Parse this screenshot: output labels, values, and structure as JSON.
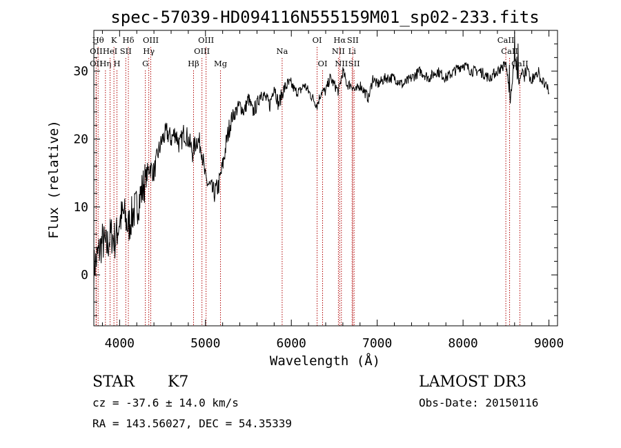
{
  "chart_data": {
    "type": "line",
    "title": "spec-57039-HD094116N555159M01_sp02-233.fits",
    "xlabel": "Wavelength (Å)",
    "ylabel": "Flux (relative)",
    "xlim": [
      3700,
      9100
    ],
    "ylim": [
      -7.5,
      36
    ],
    "x_ticks": [
      4000,
      5000,
      6000,
      7000,
      8000,
      9000
    ],
    "y_ticks": [
      0,
      10,
      20,
      30
    ],
    "grid": false,
    "series": [
      {
        "x": [
          3700,
          3750,
          3800,
          3850,
          3900,
          3950,
          4000,
          4050,
          4100,
          4150,
          4200,
          4250,
          4300,
          4350,
          4400,
          4450,
          4500,
          4550,
          4600,
          4650,
          4700,
          4750,
          4800,
          4850,
          4900,
          4950,
          5000,
          5050,
          5100,
          5150,
          5200,
          5250,
          5300,
          5350,
          5400,
          5450,
          5500,
          5550,
          5600,
          5650,
          5700,
          5750,
          5800,
          5850,
          5900,
          5950,
          6000,
          6050,
          6100,
          6150,
          6200,
          6250,
          6300,
          6350,
          6400,
          6450,
          6500,
          6550,
          6600,
          6650,
          6700,
          6750,
          6800,
          6850,
          6900,
          6950,
          7000,
          7100,
          7200,
          7300,
          7400,
          7500,
          7600,
          7700,
          7800,
          7900,
          8000,
          8100,
          8200,
          8300,
          8400,
          8500,
          8550,
          8600,
          8650,
          8700,
          8750,
          8800,
          8850,
          8900,
          8950,
          9000
        ],
        "values": [
          1,
          3,
          5,
          4,
          6,
          5,
          8,
          9,
          7,
          9,
          10,
          12,
          14,
          16,
          15,
          18,
          20,
          21,
          20,
          21,
          19,
          21,
          20,
          18,
          20,
          19,
          14,
          13,
          12,
          13,
          16,
          20,
          23,
          24,
          25,
          24,
          26,
          24,
          25,
          27,
          26,
          25,
          28,
          25,
          27,
          28,
          28,
          27,
          27,
          28,
          27,
          26,
          25,
          27,
          27,
          29,
          28,
          27,
          30,
          28,
          28,
          27,
          28,
          27,
          26,
          29,
          28,
          29,
          29,
          28,
          29,
          30,
          29,
          30,
          29,
          30,
          31,
          30,
          30,
          29,
          30,
          31,
          26,
          32,
          28,
          30,
          30,
          28,
          30,
          29,
          28,
          27
        ]
      }
    ],
    "annotations": [
      {
        "x": 3750,
        "row": 1,
        "label": "Hθ"
      },
      {
        "x": 3727,
        "row": 2,
        "label": "OII"
      },
      {
        "x": 3727,
        "row": 3,
        "label": "OII"
      },
      {
        "x": 3835,
        "row": 3,
        "label": "Hη"
      },
      {
        "x": 3889,
        "row": 2,
        "label": "HeI"
      },
      {
        "x": 3934,
        "row": 1,
        "label": "K"
      },
      {
        "x": 3969,
        "row": 3,
        "label": "H"
      },
      {
        "x": 4072,
        "row": 2,
        "label": "SII"
      },
      {
        "x": 4102,
        "row": 1,
        "label": "Hδ"
      },
      {
        "x": 4300,
        "row": 3,
        "label": "G"
      },
      {
        "x": 4340,
        "row": 2,
        "label": "Hγ"
      },
      {
        "x": 4363,
        "row": 1,
        "label": "OIII"
      },
      {
        "x": 4861,
        "row": 3,
        "label": "Hβ"
      },
      {
        "x": 4959,
        "row": 2,
        "label": "OIII"
      },
      {
        "x": 5007,
        "row": 1,
        "label": "OIII"
      },
      {
        "x": 5175,
        "row": 3,
        "label": "Mg"
      },
      {
        "x": 5893,
        "row": 2,
        "label": "Na"
      },
      {
        "x": 6300,
        "row": 1,
        "label": "OI"
      },
      {
        "x": 6364,
        "row": 3,
        "label": "OI"
      },
      {
        "x": 6548,
        "row": 2,
        "label": "NII"
      },
      {
        "x": 6563,
        "row": 1,
        "label": "Hα"
      },
      {
        "x": 6583,
        "row": 3,
        "label": "NII"
      },
      {
        "x": 6708,
        "row": 2,
        "label": "Li"
      },
      {
        "x": 6716,
        "row": 1,
        "label": "SII"
      },
      {
        "x": 6731,
        "row": 3,
        "label": "SII"
      },
      {
        "x": 8498,
        "row": 1,
        "label": "CaII"
      },
      {
        "x": 8542,
        "row": 2,
        "label": "CaII"
      },
      {
        "x": 8662,
        "row": 3,
        "label": "CaII"
      }
    ]
  },
  "info": {
    "class": "STAR",
    "subclass": "K7",
    "survey": "LAMOST DR3",
    "cz": "cz = -37.6 ± 14.0 km/s",
    "obs_date": "Obs-Date: 20150116",
    "radec": "RA = 143.56027, DEC =  54.35339"
  },
  "colors": {
    "line_marker": "#b00000",
    "spectrum": "#000000"
  }
}
